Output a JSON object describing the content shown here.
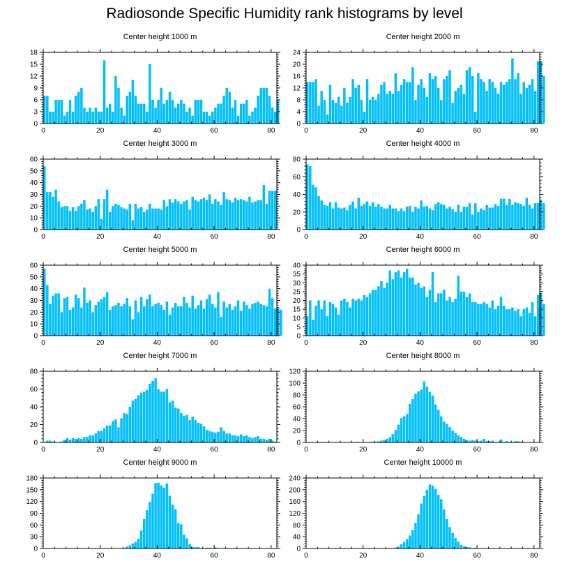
{
  "title": "Radiosonde Specific Humidity rank histograms by level",
  "bar_color": "#00BFFF",
  "chart_data": [
    {
      "type": "bar",
      "title": "Center height 1000 m",
      "xlim": [
        0,
        82
      ],
      "ylim": [
        0,
        18
      ],
      "xticks": [
        0,
        20,
        40,
        60,
        80
      ],
      "yticks": [
        0,
        3,
        6,
        9,
        12,
        15,
        18
      ],
      "values": [
        7,
        7,
        3,
        3,
        6,
        6,
        6,
        2,
        3,
        6,
        3,
        7,
        8,
        9,
        4,
        3,
        4,
        3,
        4,
        3,
        3,
        16,
        4,
        5,
        3,
        12,
        9,
        4,
        2,
        7,
        8,
        11,
        7,
        5,
        5,
        5,
        3,
        15,
        6,
        4,
        6,
        9,
        5,
        6,
        8,
        6,
        4,
        5,
        6,
        5,
        3,
        4,
        2,
        6,
        6,
        6,
        3,
        3,
        2,
        3,
        4,
        5,
        5,
        7,
        9,
        8,
        4,
        6,
        2,
        5,
        5,
        6,
        2,
        3,
        4,
        7,
        9,
        9,
        9,
        7,
        4,
        3,
        6
      ]
    },
    {
      "type": "bar",
      "title": "Center height 2000 m",
      "xlim": [
        0,
        82
      ],
      "ylim": [
        0,
        24
      ],
      "xticks": [
        0,
        20,
        40,
        60,
        80
      ],
      "yticks": [
        0,
        4,
        8,
        12,
        16,
        20,
        24
      ],
      "values": [
        14,
        14,
        14,
        15,
        6,
        11,
        8,
        3,
        13,
        8,
        7,
        9,
        6,
        12,
        7,
        9,
        15,
        12,
        13,
        8,
        4,
        15,
        8,
        9,
        8,
        10,
        13,
        14,
        10,
        11,
        10,
        17,
        11,
        13,
        15,
        14,
        14,
        19,
        8,
        13,
        15,
        12,
        9,
        17,
        15,
        16,
        12,
        8,
        15,
        16,
        18,
        7,
        11,
        12,
        13,
        10,
        18,
        19,
        16,
        4,
        17,
        15,
        14,
        11,
        15,
        14,
        12,
        10,
        14,
        13,
        14,
        15,
        22,
        15,
        17,
        10,
        14,
        12,
        13,
        15,
        11,
        21,
        21,
        16
      ]
    },
    {
      "type": "bar",
      "title": "Center height 3000 m",
      "xlim": [
        0,
        82
      ],
      "ylim": [
        0,
        60
      ],
      "xticks": [
        0,
        20,
        40,
        60,
        80
      ],
      "yticks": [
        0,
        10,
        20,
        30,
        40,
        50,
        60
      ],
      "values": [
        54,
        32,
        32,
        28,
        34,
        24,
        19,
        20,
        20,
        16,
        19,
        16,
        20,
        22,
        25,
        17,
        18,
        15,
        20,
        26,
        9,
        26,
        34,
        15,
        20,
        22,
        21,
        19,
        18,
        17,
        22,
        8,
        22,
        18,
        19,
        15,
        17,
        22,
        18,
        18,
        18,
        17,
        25,
        20,
        26,
        23,
        26,
        24,
        22,
        24,
        25,
        17,
        28,
        25,
        24,
        26,
        27,
        25,
        30,
        22,
        26,
        24,
        21,
        32,
        26,
        25,
        23,
        27,
        25,
        26,
        25,
        24,
        28,
        23,
        24,
        25,
        25,
        38,
        22,
        33,
        33,
        33
      ]
    },
    {
      "type": "bar",
      "title": "Center height 4000 m",
      "xlim": [
        0,
        82
      ],
      "ylim": [
        0,
        80
      ],
      "xticks": [
        0,
        20,
        40,
        60,
        80
      ],
      "yticks": [
        0,
        20,
        40,
        60,
        80
      ],
      "values": [
        74,
        72,
        51,
        48,
        38,
        33,
        28,
        27,
        31,
        24,
        31,
        25,
        24,
        25,
        22,
        28,
        32,
        24,
        36,
        27,
        29,
        32,
        27,
        31,
        26,
        29,
        26,
        24,
        24,
        28,
        24,
        24,
        21,
        24,
        21,
        26,
        27,
        20,
        26,
        24,
        33,
        26,
        27,
        24,
        22,
        29,
        31,
        29,
        28,
        24,
        26,
        23,
        20,
        28,
        20,
        26,
        26,
        30,
        17,
        30,
        20,
        24,
        22,
        28,
        25,
        25,
        29,
        27,
        35,
        35,
        28,
        35,
        28,
        31,
        30,
        29,
        27,
        36,
        28,
        24,
        30,
        30,
        34,
        30
      ]
    },
    {
      "type": "bar",
      "title": "Center height 5000 m",
      "xlim": [
        0,
        82
      ],
      "ylim": [
        0,
        60
      ],
      "xticks": [
        0,
        20,
        40,
        60,
        80
      ],
      "yticks": [
        0,
        10,
        20,
        30,
        40,
        50,
        60
      ],
      "values": [
        57,
        43,
        27,
        34,
        36,
        36,
        20,
        32,
        33,
        22,
        24,
        35,
        32,
        24,
        41,
        28,
        30,
        20,
        26,
        29,
        31,
        33,
        37,
        22,
        25,
        26,
        28,
        25,
        27,
        32,
        25,
        14,
        30,
        20,
        33,
        25,
        31,
        35,
        25,
        27,
        28,
        26,
        22,
        29,
        18,
        24,
        28,
        25,
        25,
        33,
        28,
        24,
        34,
        23,
        26,
        30,
        23,
        31,
        35,
        27,
        24,
        37,
        16,
        29,
        24,
        27,
        22,
        25,
        30,
        21,
        29,
        26,
        23,
        27,
        28,
        29,
        27,
        26,
        25,
        40,
        32,
        23,
        24,
        22
      ]
    },
    {
      "type": "bar",
      "title": "Center height 6000 m",
      "xlim": [
        0,
        82
      ],
      "ylim": [
        0,
        40
      ],
      "xticks": [
        0,
        20,
        40,
        60,
        80
      ],
      "yticks": [
        0,
        5,
        10,
        15,
        20,
        25,
        30,
        35,
        40
      ],
      "values": [
        11,
        20,
        9,
        17,
        20,
        15,
        20,
        11,
        19,
        18,
        16,
        12,
        20,
        21,
        19,
        16,
        21,
        20,
        21,
        20,
        23,
        22,
        24,
        26,
        26,
        28,
        31,
        27,
        30,
        37,
        32,
        36,
        37,
        33,
        36,
        38,
        33,
        33,
        29,
        30,
        27,
        28,
        22,
        26,
        36,
        19,
        24,
        24,
        26,
        20,
        22,
        19,
        21,
        34,
        25,
        25,
        22,
        24,
        19,
        19,
        18,
        18,
        19,
        18,
        16,
        20,
        15,
        17,
        22,
        17,
        15,
        15,
        16,
        14,
        15,
        11,
        15,
        16,
        13,
        19,
        11,
        23,
        24,
        18
      ]
    },
    {
      "type": "bar",
      "title": "Center height 7000 m",
      "xlim": [
        0,
        82
      ],
      "ylim": [
        0,
        80
      ],
      "xticks": [
        0,
        20,
        40,
        60,
        80
      ],
      "yticks": [
        0,
        20,
        40,
        60,
        80
      ],
      "values": [
        0,
        2,
        2,
        1,
        0,
        0,
        1,
        3,
        5,
        3,
        5,
        4,
        5,
        4,
        6,
        6,
        8,
        8,
        10,
        13,
        13,
        16,
        19,
        19,
        24,
        26,
        17,
        27,
        33,
        32,
        40,
        47,
        49,
        53,
        56,
        57,
        59,
        66,
        69,
        72,
        60,
        57,
        57,
        60,
        45,
        47,
        39,
        38,
        33,
        30,
        31,
        25,
        29,
        25,
        22,
        21,
        18,
        14,
        13,
        12,
        11,
        12,
        17,
        13,
        10,
        10,
        8,
        8,
        7,
        9,
        7,
        8,
        6,
        5,
        6,
        7,
        4,
        4,
        3,
        4,
        2,
        1
      ]
    },
    {
      "type": "bar",
      "title": "Center height 8000 m",
      "xlim": [
        0,
        82
      ],
      "ylim": [
        0,
        120
      ],
      "xticks": [
        0,
        20,
        40,
        60,
        80
      ],
      "yticks": [
        0,
        20,
        40,
        60,
        80,
        100,
        120
      ],
      "values": [
        0,
        0,
        0,
        0,
        0,
        0,
        0,
        0,
        0,
        0,
        0,
        0,
        0,
        0,
        0,
        0,
        0,
        0,
        0,
        0,
        0,
        0,
        1,
        1,
        1,
        2,
        3,
        4,
        6,
        9,
        14,
        21,
        30,
        41,
        44,
        48,
        65,
        73,
        82,
        86,
        89,
        103,
        94,
        85,
        79,
        64,
        55,
        44,
        35,
        31,
        26,
        20,
        16,
        12,
        9,
        6,
        4,
        3,
        4,
        3,
        2,
        3,
        6,
        2,
        2,
        3,
        1,
        1,
        5,
        1,
        2,
        1,
        1,
        2,
        2,
        1,
        0,
        0,
        0,
        0,
        0
      ]
    },
    {
      "type": "bar",
      "title": "Center height 9000 m",
      "xlim": [
        0,
        82
      ],
      "ylim": [
        0,
        180
      ],
      "xticks": [
        0,
        20,
        40,
        60,
        80
      ],
      "yticks": [
        0,
        30,
        60,
        90,
        120,
        150,
        180
      ],
      "values": [
        0,
        0,
        0,
        0,
        0,
        0,
        0,
        0,
        0,
        0,
        0,
        0,
        0,
        0,
        0,
        0,
        0,
        0,
        0,
        0,
        0,
        0,
        0,
        0,
        0,
        0,
        0,
        0,
        2,
        5,
        8,
        13,
        17,
        25,
        46,
        75,
        98,
        119,
        140,
        167,
        168,
        161,
        155,
        166,
        135,
        112,
        100,
        65,
        62,
        35,
        26,
        11,
        4,
        3,
        4,
        1,
        1,
        2,
        2,
        1,
        3,
        1,
        0,
        1,
        0,
        0,
        1,
        0,
        0,
        1,
        0,
        0,
        0,
        0,
        0,
        0,
        0,
        0,
        0,
        0,
        0
      ]
    },
    {
      "type": "bar",
      "title": "Center height 10000 m",
      "xlim": [
        0,
        82
      ],
      "ylim": [
        0,
        240
      ],
      "xticks": [
        0,
        20,
        40,
        60,
        80
      ],
      "yticks": [
        0,
        40,
        80,
        120,
        160,
        200,
        240
      ],
      "values": [
        0,
        0,
        0,
        0,
        0,
        0,
        0,
        0,
        0,
        0,
        0,
        0,
        0,
        0,
        0,
        0,
        0,
        0,
        0,
        0,
        0,
        0,
        0,
        0,
        0,
        0,
        0,
        0,
        0,
        0,
        1,
        3,
        6,
        14,
        22,
        32,
        44,
        63,
        87,
        116,
        153,
        179,
        200,
        218,
        214,
        203,
        183,
        168,
        133,
        100,
        73,
        53,
        36,
        24,
        12,
        7,
        5,
        4,
        2,
        2,
        1,
        0,
        0,
        0,
        0,
        0,
        0,
        0,
        0,
        0,
        0,
        0,
        0,
        0,
        0,
        0,
        0,
        0,
        0,
        0,
        0
      ]
    }
  ]
}
